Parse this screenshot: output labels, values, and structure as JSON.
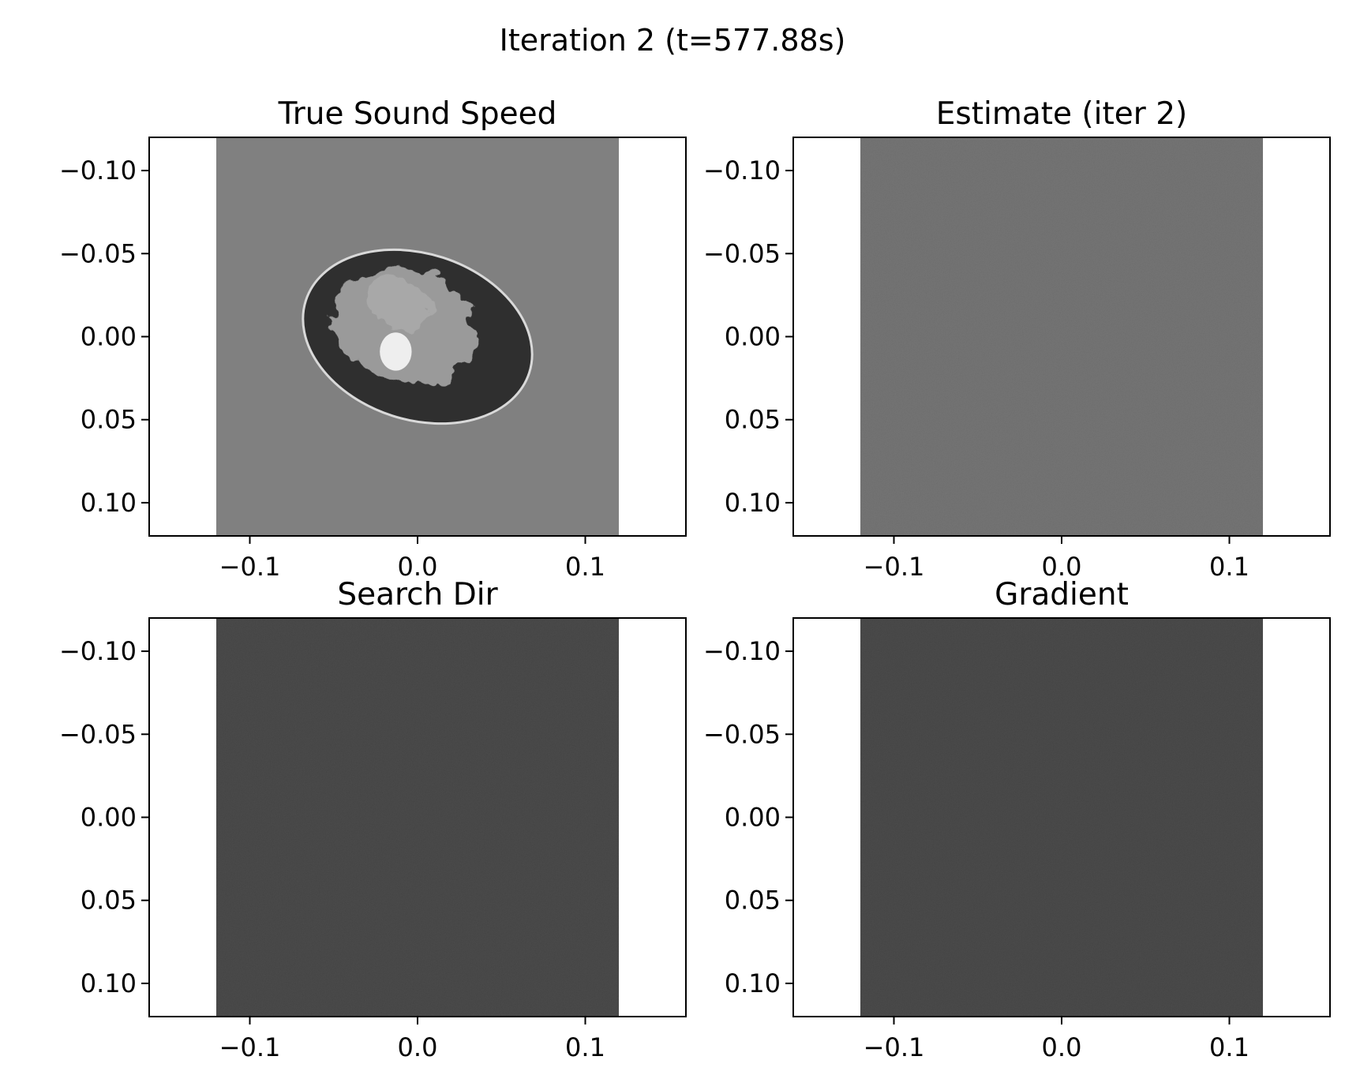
{
  "figure": {
    "suptitle": "Iteration 2 (t=577.88s)"
  },
  "chart_data": [
    {
      "type": "heatmap",
      "title": "True Sound Speed",
      "xlabel": "",
      "ylabel": "",
      "xlim": [
        -0.16,
        0.16
      ],
      "ylim": [
        0.12,
        -0.12
      ],
      "x_ticks": [
        -0.1,
        0.0,
        0.1
      ],
      "x_tick_labels": [
        "−0.1",
        "0.0",
        "0.1"
      ],
      "y_ticks": [
        -0.1,
        -0.05,
        0.0,
        0.05,
        0.1
      ],
      "y_tick_labels": [
        "−0.10",
        "−0.05",
        "0.00",
        "0.05",
        "0.10"
      ],
      "image_extent": [
        -0.12,
        0.12,
        0.12,
        -0.12
      ],
      "colormap": "gray",
      "background_color": "#808080",
      "content": "ellipse",
      "ellipse": {
        "cx": 0.0,
        "cy": 0.0,
        "rx": 0.07,
        "ry": 0.05,
        "rotation_deg": 18
      },
      "inclusion": {
        "cx": -0.013,
        "cy": 0.009,
        "rx": 0.0095,
        "ry": 0.0115
      },
      "grid": false
    },
    {
      "type": "heatmap",
      "title": "Estimate (iter 2)",
      "xlabel": "",
      "ylabel": "",
      "xlim": [
        -0.16,
        0.16
      ],
      "ylim": [
        0.12,
        -0.12
      ],
      "x_ticks": [
        -0.1,
        0.0,
        0.1
      ],
      "x_tick_labels": [
        "−0.1",
        "0.0",
        "0.1"
      ],
      "y_ticks": [
        -0.1,
        -0.05,
        0.0,
        0.05,
        0.1
      ],
      "y_tick_labels": [
        "−0.10",
        "−0.05",
        "0.00",
        "0.05",
        "0.10"
      ],
      "image_extent": [
        -0.12,
        0.12,
        0.12,
        -0.12
      ],
      "colormap": "gray",
      "background_color": "#6b6b6b",
      "content": "noise",
      "grid": false
    },
    {
      "type": "heatmap",
      "title": "Search Dir",
      "xlabel": "",
      "ylabel": "",
      "xlim": [
        -0.16,
        0.16
      ],
      "ylim": [
        0.12,
        -0.12
      ],
      "x_ticks": [
        -0.1,
        0.0,
        0.1
      ],
      "x_tick_labels": [
        "−0.1",
        "0.0",
        "0.1"
      ],
      "y_ticks": [
        -0.1,
        -0.05,
        0.0,
        0.05,
        0.1
      ],
      "y_tick_labels": [
        "−0.10",
        "−0.05",
        "0.00",
        "0.05",
        "0.10"
      ],
      "image_extent": [
        -0.12,
        0.12,
        0.12,
        -0.12
      ],
      "colormap": "gray",
      "background_color": "#3e3e3e",
      "content": "noise",
      "grid": false
    },
    {
      "type": "heatmap",
      "title": "Gradient",
      "xlabel": "",
      "ylabel": "",
      "xlim": [
        -0.16,
        0.16
      ],
      "ylim": [
        0.12,
        -0.12
      ],
      "x_ticks": [
        -0.1,
        0.0,
        0.1
      ],
      "x_tick_labels": [
        "−0.1",
        "0.0",
        "0.1"
      ],
      "y_ticks": [
        -0.1,
        -0.05,
        0.0,
        0.05,
        0.1
      ],
      "y_tick_labels": [
        "−0.10",
        "−0.05",
        "0.00",
        "0.05",
        "0.10"
      ],
      "image_extent": [
        -0.12,
        0.12,
        0.12,
        -0.12
      ],
      "colormap": "gray",
      "background_color": "#3e3e3e",
      "content": "noise",
      "grid": false
    }
  ]
}
